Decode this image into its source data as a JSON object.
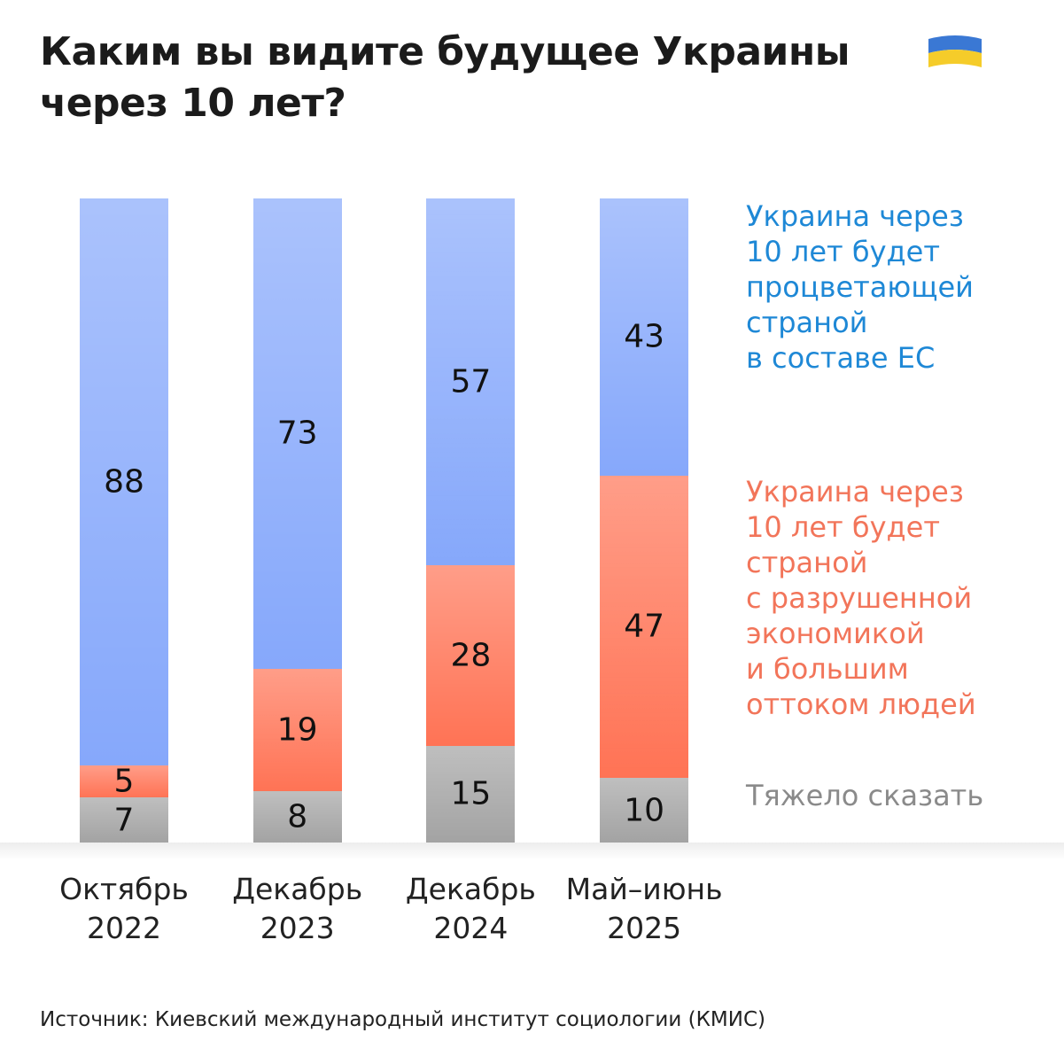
{
  "chart_data": {
    "type": "stacked_bar",
    "title": "Каким вы видите будущее Украины\nчерез 10 лет?",
    "source": "Источник: Киевский международный институт социологии (КМИС)",
    "categories": [
      "Октябрь\n2022",
      "Декабрь\n2023",
      "Декабрь\n2024",
      "Май–июнь\n2025"
    ],
    "ylim": [
      0,
      100
    ],
    "series": [
      {
        "name": "Тяжело сказать",
        "color": "#a3a3a3",
        "legend_color": "#8a8a8a",
        "values": [
          7,
          8,
          15,
          10
        ]
      },
      {
        "name": "Украина через\n10 лет будет\nстраной\nс разрушенной\nэкономикой\nи большим\nоттоком людей",
        "color": "#ff7355",
        "legend_color": "#f2755a",
        "values": [
          5,
          19,
          28,
          47
        ]
      },
      {
        "name": "Украина через\n10 лет будет\nпроцветающей\nстраной\nв составе ЕС",
        "color": "#86a8fb",
        "legend_color": "#1e88d6",
        "values": [
          88,
          73,
          57,
          43
        ]
      }
    ]
  }
}
